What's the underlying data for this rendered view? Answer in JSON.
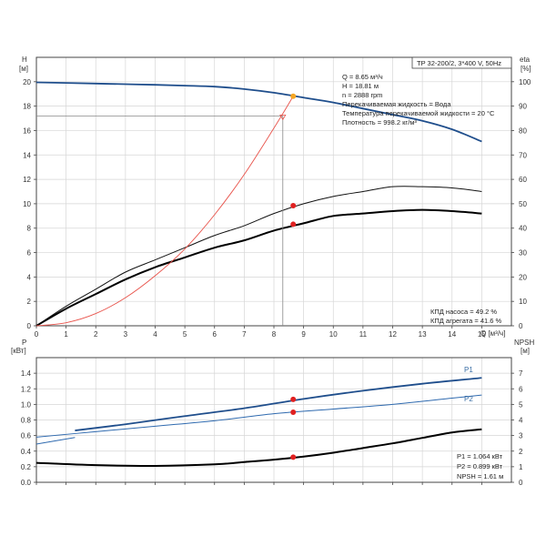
{
  "header": {
    "label": "TP 32-200/2, 3*400 V, 50Hz"
  },
  "info_top": [
    "Q = 8.65 м³/ч",
    "H = 18.81 м",
    "n = 2888 rpm",
    "Перекачиваемая жидкость = Вода",
    "Температура перекачиваемой жидкости = 20 °C",
    "Плотность = 998.2 кг/м³"
  ],
  "info_eff": [
    "КПД насоса = 49.2 %",
    "КПД агрегата = 41.6 %"
  ],
  "info_bottom": [
    "P1 = 1.064 кВт",
    "P2 = 0.899 кВт",
    "NPSH = 1.61 м"
  ],
  "chart_data": [
    {
      "type": "line",
      "axes": {
        "x": {
          "label": "Q [м³/ч]",
          "lim": [
            0,
            16
          ],
          "ticks": [
            0,
            1,
            2,
            3,
            4,
            5,
            6,
            7,
            8,
            9,
            10,
            11,
            12,
            13,
            14,
            15
          ]
        },
        "y_left": {
          "label": "H",
          "unit": "[м]",
          "lim": [
            0,
            22
          ],
          "ticks": [
            0,
            2,
            4,
            6,
            8,
            10,
            12,
            14,
            16,
            18,
            20
          ]
        },
        "y_right": {
          "label": "eta",
          "unit": "[%]",
          "lim": [
            0,
            110
          ],
          "ticks": [
            0,
            10,
            20,
            30,
            40,
            50,
            60,
            70,
            80,
            90,
            100
          ]
        }
      },
      "grid": true,
      "series": [
        {
          "id": "head",
          "axis": "left",
          "color": "#1f4e8c",
          "width": 1.8,
          "x": [
            0,
            1,
            2,
            3,
            4,
            5,
            6,
            7,
            8,
            9,
            10,
            11,
            12,
            13,
            14,
            15
          ],
          "y": [
            19.95,
            19.9,
            19.85,
            19.8,
            19.75,
            19.68,
            19.6,
            19.4,
            19.1,
            18.7,
            18.3,
            17.8,
            17.3,
            16.8,
            16.1,
            15.1
          ]
        },
        {
          "id": "eff-pump",
          "axis": "right",
          "color": "#111111",
          "width": 1.0,
          "x": [
            0,
            1,
            2,
            3,
            4,
            5,
            6,
            7,
            8,
            9,
            10,
            11,
            12,
            13,
            14,
            15
          ],
          "y": [
            0,
            8,
            15,
            22,
            27,
            32,
            37,
            41,
            46,
            50,
            53,
            55,
            57,
            57,
            56.5,
            55
          ]
        },
        {
          "id": "eff-unit",
          "axis": "right",
          "color": "#000000",
          "width": 2.0,
          "x": [
            0,
            1,
            2,
            3,
            4,
            5,
            6,
            7,
            8,
            9,
            10,
            11,
            12,
            13,
            14,
            15
          ],
          "y": [
            0,
            7,
            13,
            19,
            24,
            28,
            32,
            35,
            39,
            42,
            45,
            46,
            47,
            47.5,
            47,
            46
          ]
        },
        {
          "id": "system",
          "axis": "left",
          "color": "#e8534b",
          "width": 0.9,
          "x": [
            0,
            1,
            2,
            3,
            4,
            5,
            6,
            7,
            8,
            8.65
          ],
          "y": [
            0,
            0.25,
            1.0,
            2.3,
            4.1,
            6.3,
            9.1,
            12.4,
            16.2,
            18.81
          ]
        }
      ],
      "points": [
        {
          "axis": "left",
          "x": 8.65,
          "y": 18.81,
          "color": "#f5a623"
        },
        {
          "axis": "right",
          "x": 8.65,
          "y": 49.2,
          "color": "#e02020"
        },
        {
          "axis": "right",
          "x": 8.65,
          "y": 41.6,
          "color": "#e02020"
        }
      ],
      "crosshair": {
        "x": 8.3,
        "y": 17.2
      }
    },
    {
      "type": "line",
      "axes": {
        "x": {
          "lim": [
            0,
            16
          ]
        },
        "y_left": {
          "label": "P",
          "unit": "[кВт]",
          "lim": [
            0,
            1.6
          ],
          "ticks": [
            0,
            0.2,
            0.4,
            0.6,
            0.8,
            1.0,
            1.2,
            1.4
          ]
        },
        "y_right": {
          "label": "NPSH",
          "unit": "[м]",
          "lim": [
            0,
            8
          ],
          "ticks": [
            0,
            1,
            2,
            3,
            4,
            5,
            6,
            7
          ]
        }
      },
      "grid": true,
      "series": [
        {
          "id": "P1",
          "label": "P1",
          "axis": "left",
          "color": "#1f4e8c",
          "width": 1.8,
          "x": [
            1.3,
            3,
            5,
            7,
            9,
            11,
            13,
            15
          ],
          "y": [
            0.665,
            0.745,
            0.85,
            0.95,
            1.07,
            1.175,
            1.265,
            1.34
          ]
        },
        {
          "id": "P2",
          "label": "P2",
          "axis": "left",
          "color": "#2f6aaf",
          "width": 1.0,
          "x": [
            0,
            2,
            4,
            6,
            8,
            10,
            12,
            14,
            15
          ],
          "y": [
            0.58,
            0.65,
            0.72,
            0.79,
            0.88,
            0.94,
            1.0,
            1.08,
            1.12
          ]
        },
        {
          "id": "P2-left",
          "axis": "left",
          "color": "#2f6aaf",
          "width": 1.0,
          "x": [
            0,
            1.3
          ],
          "y": [
            0.49,
            0.575
          ]
        },
        {
          "id": "NPSH",
          "axis": "right",
          "color": "#000000",
          "width": 2.0,
          "x": [
            0,
            2,
            4,
            6,
            7,
            8,
            9,
            10,
            11,
            12,
            13,
            14,
            15
          ],
          "y": [
            1.25,
            1.1,
            1.05,
            1.15,
            1.3,
            1.45,
            1.65,
            1.9,
            2.2,
            2.5,
            2.85,
            3.2,
            3.4
          ]
        }
      ],
      "points": [
        {
          "axis": "left",
          "x": 8.65,
          "y": 1.064,
          "color": "#e02020"
        },
        {
          "axis": "left",
          "x": 8.65,
          "y": 0.899,
          "color": "#e02020"
        },
        {
          "axis": "right",
          "x": 8.65,
          "y": 1.61,
          "color": "#e02020"
        }
      ]
    }
  ]
}
